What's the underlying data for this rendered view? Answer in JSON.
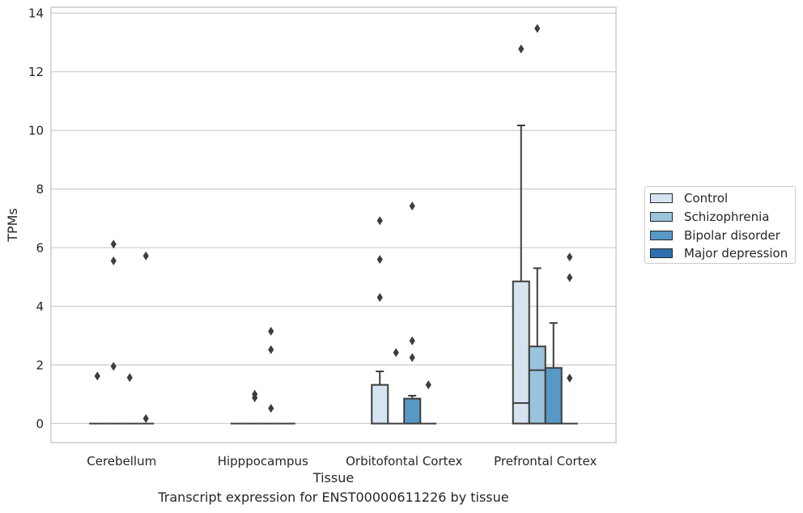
{
  "caption": "Transcript expression for ENST00000611226 by tissue",
  "chart_data": {
    "type": "box",
    "xlabel": "Tissue",
    "ylabel": "TPMs",
    "ylim": [
      -0.65,
      14.2
    ],
    "yticks": [
      0,
      2,
      4,
      6,
      8,
      10,
      12,
      14
    ],
    "grid": "horizontal",
    "legend_position": "center-right",
    "categories": [
      "Cerebellum",
      "Hipppocampus",
      "Orbitofontal Cortex",
      "Prefrontal Cortex"
    ],
    "series": [
      {
        "name": "Control",
        "color": "#d6e4f1"
      },
      {
        "name": "Schizophrenia",
        "color": "#9ac4dc"
      },
      {
        "name": "Bipolar disorder",
        "color": "#5799c6"
      },
      {
        "name": "Major depression",
        "color": "#2d6fb0"
      }
    ],
    "boxes": [
      {
        "category": 0,
        "series": 0,
        "q1": 0,
        "median": 0,
        "q3": 0,
        "whisker_low": 0,
        "whisker_high": 0,
        "outliers": [
          1.62
        ]
      },
      {
        "category": 0,
        "series": 1,
        "q1": 0,
        "median": 0,
        "q3": 0,
        "whisker_low": 0,
        "whisker_high": 0,
        "outliers": [
          1.95,
          5.55,
          6.12
        ]
      },
      {
        "category": 0,
        "series": 2,
        "q1": 0,
        "median": 0,
        "q3": 0,
        "whisker_low": 0,
        "whisker_high": 0,
        "outliers": [
          1.57
        ]
      },
      {
        "category": 0,
        "series": 3,
        "q1": 0,
        "median": 0,
        "q3": 0,
        "whisker_low": 0,
        "whisker_high": 0,
        "outliers": [
          0.17,
          5.72
        ]
      },
      {
        "category": 1,
        "series": 0,
        "q1": 0,
        "median": 0,
        "q3": 0,
        "whisker_low": 0,
        "whisker_high": 0,
        "outliers": []
      },
      {
        "category": 1,
        "series": 1,
        "q1": 0,
        "median": 0,
        "q3": 0,
        "whisker_low": 0,
        "whisker_high": 0,
        "outliers": [
          0.88,
          1.0
        ]
      },
      {
        "category": 1,
        "series": 2,
        "q1": 0,
        "median": 0,
        "q3": 0,
        "whisker_low": 0,
        "whisker_high": 0,
        "outliers": [
          0.52,
          2.52,
          3.15
        ]
      },
      {
        "category": 1,
        "series": 3,
        "q1": 0,
        "median": 0,
        "q3": 0,
        "whisker_low": 0,
        "whisker_high": 0,
        "outliers": []
      },
      {
        "category": 2,
        "series": 0,
        "q1": 0,
        "median": 0,
        "q3": 1.32,
        "whisker_low": 0,
        "whisker_high": 1.78,
        "outliers": [
          4.3,
          5.6,
          6.92
        ]
      },
      {
        "category": 2,
        "series": 1,
        "q1": 0,
        "median": 0,
        "q3": 0,
        "whisker_low": 0,
        "whisker_high": 0,
        "outliers": [
          2.42
        ]
      },
      {
        "category": 2,
        "series": 2,
        "q1": 0,
        "median": 0,
        "q3": 0.85,
        "whisker_low": 0,
        "whisker_high": 0.95,
        "outliers": [
          2.25,
          2.82,
          7.42
        ]
      },
      {
        "category": 2,
        "series": 3,
        "q1": 0,
        "median": 0,
        "q3": 0,
        "whisker_low": 0,
        "whisker_high": 0,
        "outliers": [
          1.32
        ]
      },
      {
        "category": 3,
        "series": 0,
        "q1": 0,
        "median": 0.7,
        "q3": 4.85,
        "whisker_low": 0,
        "whisker_high": 10.17,
        "outliers": [
          12.78
        ]
      },
      {
        "category": 3,
        "series": 1,
        "q1": 0,
        "median": 1.82,
        "q3": 2.63,
        "whisker_low": 0,
        "whisker_high": 5.3,
        "outliers": [
          13.48
        ]
      },
      {
        "category": 3,
        "series": 2,
        "q1": 0,
        "median": 0,
        "q3": 1.9,
        "whisker_low": 0,
        "whisker_high": 3.43,
        "outliers": []
      },
      {
        "category": 3,
        "series": 3,
        "q1": 0,
        "median": 0,
        "q3": 0,
        "whisker_low": 0,
        "whisker_high": 0,
        "outliers": [
          1.55,
          4.98,
          5.68
        ]
      }
    ]
  }
}
